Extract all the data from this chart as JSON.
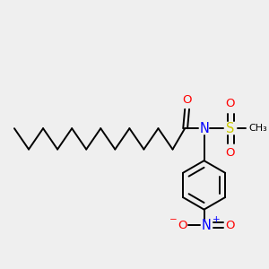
{
  "background_color": "#efefef",
  "bond_color": "#000000",
  "atom_colors": {
    "O": "#ff0000",
    "N": "#0000ff",
    "S": "#cccc00"
  },
  "figsize": [
    3.0,
    3.0
  ],
  "dpi": 100
}
